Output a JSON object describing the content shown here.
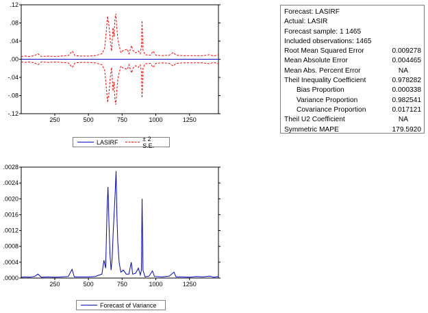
{
  "chart_data": [
    {
      "type": "line",
      "x_range": [
        1,
        1465
      ],
      "xticks": [
        250,
        500,
        750,
        1000,
        1250
      ],
      "ylim": [
        -0.12,
        0.12
      ],
      "yticks": [
        -0.12,
        -0.08,
        -0.04,
        0.0,
        0.04,
        0.08,
        0.12
      ],
      "ytick_labels": [
        "-.12",
        "-.08",
        "-.04",
        ".00",
        ".04",
        ".08",
        ".12"
      ],
      "series": [
        {
          "name": "LASIRF",
          "color": "#0000cc",
          "points": [
            [
              1,
              0.0
            ],
            [
              1465,
              0.0
            ]
          ]
        },
        {
          "name": "± 2 S.E.",
          "color": "#ff0000",
          "points": [
            [
              1,
              0.006
            ],
            [
              30,
              0.007
            ],
            [
              60,
              0.006
            ],
            [
              100,
              0.008
            ],
            [
              125,
              0.012
            ],
            [
              150,
              0.006
            ],
            [
              200,
              0.007
            ],
            [
              250,
              0.006
            ],
            [
              300,
              0.007
            ],
            [
              350,
              0.008
            ],
            [
              380,
              0.018
            ],
            [
              400,
              0.008
            ],
            [
              450,
              0.007
            ],
            [
              500,
              0.007
            ],
            [
              550,
              0.008
            ],
            [
              600,
              0.012
            ],
            [
              620,
              0.024
            ],
            [
              632,
              0.06
            ],
            [
              642,
              0.095
            ],
            [
              652,
              0.075
            ],
            [
              662,
              0.04
            ],
            [
              672,
              0.018
            ],
            [
              682,
              0.07
            ],
            [
              690,
              0.05
            ],
            [
              697,
              0.09
            ],
            [
              703,
              0.1
            ],
            [
              710,
              0.07
            ],
            [
              718,
              0.045
            ],
            [
              728,
              0.03
            ],
            [
              740,
              0.015
            ],
            [
              760,
              0.02
            ],
            [
              790,
              0.022
            ],
            [
              800,
              0.012
            ],
            [
              820,
              0.03
            ],
            [
              830,
              0.02
            ],
            [
              850,
              0.014
            ],
            [
              870,
              0.018
            ],
            [
              885,
              0.012
            ],
            [
              893,
              0.028
            ],
            [
              898,
              0.085
            ],
            [
              905,
              0.02
            ],
            [
              920,
              0.01
            ],
            [
              960,
              0.009
            ],
            [
              980,
              0.018
            ],
            [
              1000,
              0.009
            ],
            [
              1050,
              0.008
            ],
            [
              1100,
              0.009
            ],
            [
              1130,
              0.015
            ],
            [
              1150,
              0.009
            ],
            [
              1200,
              0.008
            ],
            [
              1250,
              0.008
            ],
            [
              1300,
              0.008
            ],
            [
              1350,
              0.008
            ],
            [
              1400,
              0.01
            ],
            [
              1430,
              0.007
            ],
            [
              1465,
              0.01
            ]
          ]
        }
      ]
    },
    {
      "type": "line",
      "x_range": [
        1,
        1465
      ],
      "xticks": [
        250,
        500,
        750,
        1000,
        1250
      ],
      "ylim": [
        0.0,
        0.0028
      ],
      "yticks": [
        0.0,
        0.0004,
        0.0008,
        0.0012,
        0.0016,
        0.002,
        0.0024,
        0.0028
      ],
      "ytick_labels": [
        ".0000",
        ".0004",
        ".0008",
        ".0012",
        ".0016",
        ".0020",
        ".0024",
        ".0028"
      ],
      "series": [
        {
          "name": "Forecast of Variance",
          "color": "#0000cc",
          "points": [
            [
              1,
              2e-05
            ],
            [
              30,
              3e-05
            ],
            [
              60,
              2e-05
            ],
            [
              100,
              4e-05
            ],
            [
              125,
              0.0001
            ],
            [
              150,
              2e-05
            ],
            [
              200,
              3e-05
            ],
            [
              250,
              2e-05
            ],
            [
              300,
              3e-05
            ],
            [
              350,
              4e-05
            ],
            [
              378,
              0.00022
            ],
            [
              395,
              3e-05
            ],
            [
              450,
              3e-05
            ],
            [
              500,
              3e-05
            ],
            [
              550,
              4e-05
            ],
            [
              600,
              0.0001
            ],
            [
              615,
              0.00045
            ],
            [
              628,
              0.00025
            ],
            [
              638,
              0.0017
            ],
            [
              645,
              0.0023
            ],
            [
              652,
              0.0014
            ],
            [
              660,
              0.0006
            ],
            [
              668,
              0.0002
            ],
            [
              676,
              0.0005
            ],
            [
              684,
              0.0012
            ],
            [
              692,
              0.0017
            ],
            [
              699,
              0.0022
            ],
            [
              705,
              0.0027
            ],
            [
              711,
              0.0016
            ],
            [
              718,
              0.0009
            ],
            [
              728,
              0.0004
            ],
            [
              740,
              0.00015
            ],
            [
              760,
              0.0002
            ],
            [
              780,
              0.0001
            ],
            [
              800,
              0.0001
            ],
            [
              818,
              0.0004
            ],
            [
              828,
              0.0001
            ],
            [
              850,
              0.00012
            ],
            [
              870,
              0.00025
            ],
            [
              885,
              8e-05
            ],
            [
              893,
              0.0002
            ],
            [
              898,
              0.002
            ],
            [
              905,
              0.0002
            ],
            [
              920,
              3e-05
            ],
            [
              950,
              5e-05
            ],
            [
              975,
              0.00018
            ],
            [
              990,
              4e-05
            ],
            [
              1050,
              3e-05
            ],
            [
              1100,
              5e-05
            ],
            [
              1135,
              0.00015
            ],
            [
              1150,
              3e-05
            ],
            [
              1200,
              3e-05
            ],
            [
              1250,
              2e-05
            ],
            [
              1300,
              4e-05
            ],
            [
              1350,
              3e-05
            ],
            [
              1400,
              5e-05
            ],
            [
              1430,
              2e-05
            ],
            [
              1465,
              4e-05
            ]
          ]
        }
      ]
    }
  ],
  "legend_top": {
    "items": [
      {
        "label": "LASIRF"
      },
      {
        "label": "± 2 S.E."
      }
    ]
  },
  "legend_bottom": {
    "items": [
      {
        "label": "Forecast of Variance"
      }
    ]
  },
  "stats": {
    "lines": [
      "Forecast: LASIRF",
      "Actual: LASIR",
      "Forecast sample: 1 1465",
      "Included observations: 1465"
    ],
    "rows": [
      {
        "label": "Root Mean Squared Error",
        "value": "0.009278",
        "indent": false,
        "center": false
      },
      {
        "label": "Mean Absolute Error",
        "value": "0.004465",
        "indent": false,
        "center": false
      },
      {
        "label": "Mean Abs. Percent Error",
        "value": "NA",
        "indent": false,
        "center": true
      },
      {
        "label": "Theil Inequality Coefficient",
        "value": "0.978282",
        "indent": false,
        "center": false
      },
      {
        "label": "Bias Proportion",
        "value": "0.000338",
        "indent": true,
        "center": false
      },
      {
        "label": "Variance Proportion",
        "value": "0.982541",
        "indent": true,
        "center": false
      },
      {
        "label": "Covariance Proportion",
        "value": "0.017121",
        "indent": true,
        "center": false
      },
      {
        "label": "Theil U2 Coefficient",
        "value": "NA",
        "indent": false,
        "center": true
      },
      {
        "label": "Symmetric MAPE",
        "value": "179.5920",
        "indent": false,
        "center": false
      }
    ]
  }
}
